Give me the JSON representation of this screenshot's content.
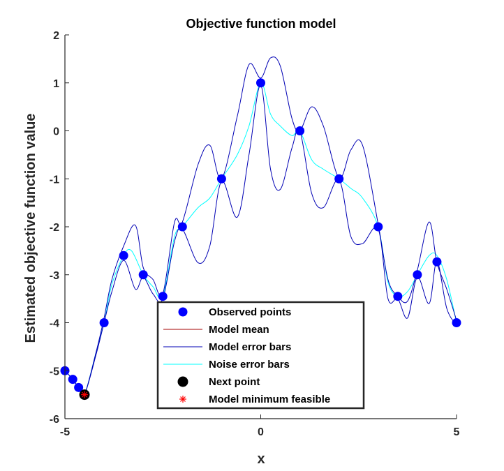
{
  "chart_data": {
    "type": "line",
    "title": "Objective function model",
    "xlabel": "x",
    "ylabel": "Estimated objective function value",
    "xlim": [
      -5,
      5
    ],
    "ylim": [
      -6,
      2
    ],
    "xticks": [
      -5,
      0,
      5
    ],
    "yticks": [
      -6,
      -5,
      -4,
      -3,
      -2,
      -1,
      0,
      1,
      2
    ],
    "legend_placement": "bottom-center",
    "colors": {
      "observed": "#0000ff",
      "mean": "#a50000",
      "error_bars": "#0000b4",
      "noise_bars": "#00ffff",
      "next_point": "#000000",
      "model_min": "#ff0000"
    },
    "observed_points": {
      "x": [
        -5,
        -4.8,
        -4.65,
        -4.5,
        -4,
        -3.5,
        -3,
        -2.5,
        -2,
        -1,
        0,
        1,
        2,
        3,
        3.5,
        4,
        4.5,
        5
      ],
      "y": [
        -5,
        -5.18,
        -5.35,
        -5.5,
        -4,
        -2.6,
        -3,
        -3.45,
        -2,
        -1,
        1,
        0,
        -1,
        -2,
        -3.45,
        -3,
        -2.73,
        -4
      ]
    },
    "model_error_bars_upper": {
      "x": [
        -5,
        -4.8,
        -4.65,
        -4.5,
        -4.2,
        -4,
        -3.8,
        -3.5,
        -3.2,
        -3,
        -2.75,
        -2.5,
        -2.2,
        -2,
        -1.6,
        -1.3,
        -1,
        -0.6,
        -0.3,
        0,
        0.25,
        0.5,
        0.8,
        1,
        1.3,
        1.6,
        2,
        2.3,
        2.6,
        3,
        3.25,
        3.5,
        3.75,
        4,
        4.3,
        4.5,
        4.75,
        5
      ],
      "y": [
        -5,
        -5.18,
        -5.35,
        -5.5,
        -4.6,
        -3.9,
        -3.1,
        -2.4,
        -1.97,
        -2.85,
        -3.1,
        -3.4,
        -1.9,
        -1.9,
        -0.7,
        -0.3,
        -1,
        0.3,
        1.38,
        1.1,
        1.52,
        1.35,
        0.25,
        0,
        0.5,
        0.1,
        -0.98,
        -0.4,
        -0.3,
        -1.95,
        -3.1,
        -3.45,
        -3.55,
        -2.9,
        -1.9,
        -2.75,
        -3.3,
        -3.95
      ]
    },
    "model_error_bars_lower": {
      "x": [
        -5,
        -4.8,
        -4.65,
        -4.5,
        -4.2,
        -4,
        -3.8,
        -3.5,
        -3.2,
        -3,
        -2.75,
        -2.5,
        -2.2,
        -2,
        -1.6,
        -1.3,
        -1,
        -0.6,
        -0.3,
        0,
        0.25,
        0.5,
        0.8,
        1,
        1.3,
        1.6,
        2,
        2.3,
        2.6,
        3,
        3.25,
        3.5,
        3.75,
        4,
        4.3,
        4.5,
        4.75,
        5
      ],
      "y": [
        -5,
        -5.18,
        -5.35,
        -5.5,
        -4.65,
        -4,
        -3.35,
        -2.7,
        -3.3,
        -3.05,
        -3.4,
        -3.5,
        -2.3,
        -2.05,
        -2.75,
        -2.4,
        -1.05,
        -1.8,
        -0.5,
        0.95,
        -0.8,
        -1.22,
        -0.35,
        0,
        -1.3,
        -1.6,
        -1.02,
        -2.2,
        -2.35,
        -2.05,
        -3.5,
        -3.5,
        -3.9,
        -3.05,
        -3.6,
        -2.72,
        -3.7,
        -4.05
      ]
    },
    "noise_error_bars": {
      "x": [
        -5,
        -4.8,
        -4.65,
        -4.5,
        -4.2,
        -4,
        -3.8,
        -3.5,
        -3.3,
        -3,
        -2.75,
        -2.5,
        -2.2,
        -2,
        -1.6,
        -1.3,
        -1,
        -0.6,
        -0.3,
        0,
        0.25,
        0.5,
        0.8,
        1,
        1.3,
        1.6,
        2,
        2.3,
        2.6,
        3,
        3.25,
        3.5,
        3.75,
        4,
        4.3,
        4.5,
        4.75,
        5
      ],
      "y": [
        -5,
        -5.18,
        -5.35,
        -5.5,
        -4.6,
        -4,
        -3.2,
        -2.6,
        -2.5,
        -3,
        -3.25,
        -3.45,
        -2.2,
        -2,
        -1.6,
        -1.4,
        -1,
        -0.5,
        0.1,
        1,
        0.35,
        0.1,
        -0.1,
        0,
        -0.6,
        -0.8,
        -1,
        -1.2,
        -1.4,
        -2,
        -3.15,
        -3.45,
        -3.35,
        -3,
        -2.6,
        -2.6,
        -3.1,
        -4
      ]
    },
    "next_point": {
      "x": -4.5,
      "y": -5.5
    },
    "model_minimum_feasible": {
      "x": -4.5,
      "y": -5.5
    },
    "legend": [
      {
        "label": "Observed points",
        "marker": "dot"
      },
      {
        "label": "Model mean",
        "marker": "line-mean"
      },
      {
        "label": "Model error bars",
        "marker": "line-error"
      },
      {
        "label": "Noise error bars",
        "marker": "line-noise"
      },
      {
        "label": "Next point",
        "marker": "black-dot"
      },
      {
        "label": "Model minimum feasible",
        "marker": "red-star"
      }
    ]
  }
}
